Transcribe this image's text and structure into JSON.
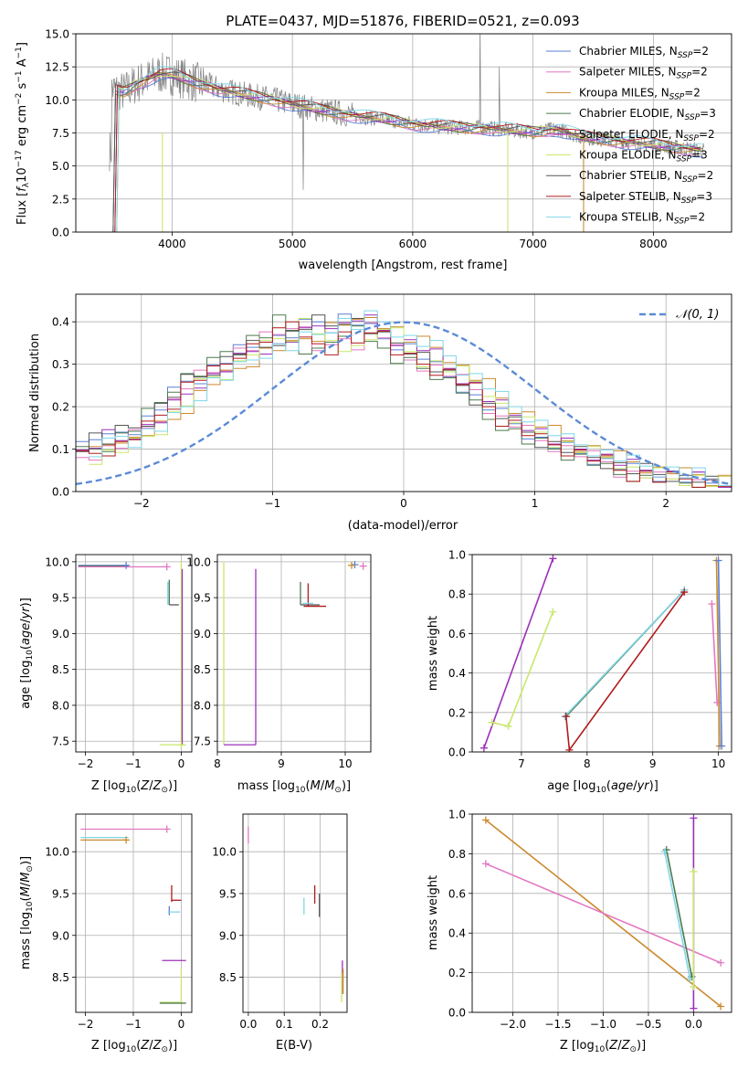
{
  "figure": {
    "title": "PLATE=0437, MJD=51876, FIBERID=0521, z=0.093"
  },
  "colors": {
    "Chabrier MILES": "#5b80d6",
    "Salpeter MILES": "#e377c2",
    "Kroupa MILES": "#cc8a2e",
    "Chabrier ELODIE": "#4f7a4f",
    "Salpeter ELODIE": "#9b30b8",
    "Kroupa ELODIE": "#c8e86a",
    "Chabrier STELIB": "#555555",
    "Salpeter STELIB": "#b01c1c",
    "Kroupa STELIB": "#7fd6e8",
    "data": "#808080",
    "normal": "#5b8bd6",
    "red_model": "#e8643c"
  },
  "chart_data": [
    {
      "type": "line",
      "id": "spectrum",
      "xlabel": "wavelength [Angstrom, rest frame]",
      "ylabel": "Flux [f_λ10^-17 erg cm^-2 s^-1 A^-1]",
      "xlim": [
        3200,
        8650
      ],
      "ylim": [
        0,
        15
      ],
      "xticks": [
        4000,
        5000,
        6000,
        7000,
        8000
      ],
      "yticks": [
        0.0,
        2.5,
        5.0,
        7.5,
        10.0,
        12.5,
        15.0
      ],
      "ytick_labels": [
        "0.0",
        "2.5",
        "5.0",
        "7.5",
        "10.0",
        "12.5",
        "15.0"
      ],
      "legend_position": "upper-right",
      "legend": [
        {
          "name": "Chabrier MILES",
          "sub": "SSP",
          "n": "2"
        },
        {
          "name": "Salpeter MILES",
          "sub": "SSP",
          "n": "2"
        },
        {
          "name": "Kroupa MILES",
          "sub": "SSP",
          "n": "2"
        },
        {
          "name": "Chabrier ELODIE",
          "sub": "SSP",
          "n": "3"
        },
        {
          "name": "Salpeter ELODIE",
          "sub": "SSP",
          "n": "2"
        },
        {
          "name": "Kroupa ELODIE",
          "sub": "SSP",
          "n": "3"
        },
        {
          "name": "Chabrier STELIB",
          "sub": "SSP",
          "n": "2"
        },
        {
          "name": "Salpeter STELIB",
          "sub": "SSP",
          "n": "3"
        },
        {
          "name": "Kroupa STELIB",
          "sub": "SSP",
          "n": "2"
        }
      ],
      "model_continuum": {
        "x": [
          3500,
          3600,
          3700,
          3800,
          3900,
          4000,
          4100,
          4200,
          4300,
          4400,
          4500,
          4600,
          4800,
          5000,
          5200,
          5400,
          5600,
          5800,
          6000,
          6200,
          6400,
          6600,
          6800,
          7000,
          7200,
          7400,
          7600,
          7800,
          8000,
          8200,
          8400
        ],
        "y": [
          10.8,
          10.6,
          11.2,
          11.6,
          12.0,
          11.9,
          11.6,
          11.3,
          11.1,
          10.8,
          10.6,
          10.4,
          10.1,
          9.7,
          9.3,
          9.0,
          8.7,
          8.5,
          8.2,
          8.0,
          7.9,
          7.9,
          7.7,
          7.6,
          7.8,
          7.2,
          7.0,
          6.8,
          6.6,
          6.4,
          6.2
        ]
      }
    },
    {
      "type": "histogram",
      "id": "residuals",
      "xlabel": "(data-model)/error",
      "ylabel": "Normed distribution",
      "xlim": [
        -2.5,
        2.5
      ],
      "ylim": [
        0,
        0.465
      ],
      "xticks": [
        -2,
        -1,
        0,
        1,
        2
      ],
      "xtick_labels": [
        "−2",
        "−1",
        "0",
        "1",
        "2"
      ],
      "yticks": [
        0.0,
        0.1,
        0.2,
        0.3,
        0.4
      ],
      "ytick_labels": [
        "0.0",
        "0.1",
        "0.2",
        "0.3",
        "0.4"
      ],
      "legend": [
        "𝒩(0, 1)"
      ],
      "legend_position": "upper-right",
      "bin_edges_start": -2.5,
      "bin_width": 0.1,
      "series": [
        {
          "name": "Chabrier MILES",
          "values": [
            0.09,
            0.11,
            0.13,
            0.12,
            0.14,
            0.15,
            0.17,
            0.2,
            0.23,
            0.26,
            0.27,
            0.29,
            0.31,
            0.33,
            0.34,
            0.34,
            0.36,
            0.37,
            0.39,
            0.4,
            0.39,
            0.41,
            0.4,
            0.38,
            0.36,
            0.35,
            0.34,
            0.32,
            0.29,
            0.27,
            0.25,
            0.22,
            0.2,
            0.18,
            0.16,
            0.14,
            0.12,
            0.11,
            0.1,
            0.09,
            0.08,
            0.07,
            0.06,
            0.05,
            0.05,
            0.04,
            0.04,
            0.03,
            0.03,
            0.02
          ]
        },
        {
          "name": "Salpeter MILES",
          "values": [
            0.08,
            0.09,
            0.1,
            0.11,
            0.13,
            0.15,
            0.18,
            0.21,
            0.25,
            0.27,
            0.28,
            0.3,
            0.33,
            0.34,
            0.36,
            0.37,
            0.4,
            0.38,
            0.34,
            0.33,
            0.36,
            0.35,
            0.39,
            0.37,
            0.33,
            0.31,
            0.3,
            0.29,
            0.28,
            0.26,
            0.24,
            0.2,
            0.17,
            0.16,
            0.14,
            0.12,
            0.11,
            0.1,
            0.09,
            0.08,
            0.07,
            0.05,
            0.04,
            0.04,
            0.03,
            0.03,
            0.03,
            0.02,
            0.02,
            0.02
          ]
        }
      ],
      "normal_curve": {
        "mean": 0,
        "sigma": 1
      }
    },
    {
      "type": "scatter",
      "id": "age-vs-Z",
      "xlabel": "Z [log10(Z/Z⊙)]",
      "ylabel": "age  [log10(age/yr)]",
      "xlim": [
        -2.2,
        0.22
      ],
      "ylim": [
        7.35,
        10.1
      ],
      "xticks": [
        -2,
        -1,
        0
      ],
      "xtick_labels": [
        "−2",
        "−1",
        "0"
      ],
      "yticks": [
        7.5,
        8.0,
        8.5,
        9.0,
        9.5,
        10.0
      ],
      "ytick_labels": [
        "7.5",
        "8.0",
        "8.5",
        "9.0",
        "9.5",
        "10.0"
      ]
    },
    {
      "type": "scatter",
      "id": "age-vs-mass",
      "xlabel": "mass [log10(M/M⊙)]",
      "ylabel": "",
      "xlim": [
        8.0,
        10.4
      ],
      "ylim": [
        7.35,
        10.1
      ],
      "xticks": [
        8,
        9,
        10
      ],
      "xtick_labels": [
        "8",
        "9",
        "10"
      ],
      "yticks": [
        7.5,
        8.0,
        8.5,
        9.0,
        9.5,
        10.0
      ],
      "ytick_labels": [
        "7.5",
        "8.0",
        "8.5",
        "9.0",
        "9.5",
        "10.0"
      ]
    },
    {
      "type": "line",
      "id": "weight-vs-age",
      "xlabel": "age  [log10(age/yr)]",
      "ylabel": "mass weight",
      "xlim": [
        6.25,
        10.2
      ],
      "ylim": [
        0,
        1
      ],
      "xticks": [
        7,
        8,
        9,
        10
      ],
      "xtick_labels": [
        "7",
        "8",
        "9",
        "10"
      ],
      "yticks": [
        0.0,
        0.2,
        0.4,
        0.6,
        0.8,
        1.0
      ],
      "ytick_labels": [
        "0.0",
        "0.2",
        "0.4",
        "0.6",
        "0.8",
        "1.0"
      ],
      "series": [
        {
          "name": "Salpeter ELODIE",
          "x": [
            6.43,
            7.48
          ],
          "y": [
            0.02,
            0.98
          ]
        },
        {
          "name": "Kroupa ELODIE",
          "x": [
            6.55,
            6.8,
            7.48
          ],
          "y": [
            0.15,
            0.13,
            0.71
          ]
        },
        {
          "name": "Chabrier ELODIE",
          "x": [
            7.68,
            9.48
          ],
          "y": [
            0.18,
            0.82
          ]
        },
        {
          "name": "Kroupa STELIB",
          "x": [
            7.66,
            9.48
          ],
          "y": [
            0.18,
            0.82
          ]
        },
        {
          "name": "Salpeter STELIB",
          "x": [
            7.68,
            7.73,
            9.48
          ],
          "y": [
            0.18,
            0.01,
            0.81
          ]
        },
        {
          "name": "Salpeter MILES",
          "x": [
            9.9,
            9.98
          ],
          "y": [
            0.75,
            0.25
          ]
        },
        {
          "name": "Kroupa MILES",
          "x": [
            9.97,
            10.02
          ],
          "y": [
            0.97,
            0.03
          ]
        },
        {
          "name": "Chabrier MILES",
          "x": [
            10.0,
            10.05
          ],
          "y": [
            0.97,
            0.03
          ]
        }
      ]
    },
    {
      "type": "scatter",
      "id": "mass-vs-Z",
      "xlabel": "Z [log10(Z/Z⊙)]",
      "ylabel": "mass [log10(M/M⊙)]",
      "xlim": [
        -2.2,
        0.22
      ],
      "ylim": [
        8.08,
        10.45
      ],
      "xticks": [
        -2,
        -1,
        0
      ],
      "xtick_labels": [
        "−2",
        "−1",
        "0"
      ],
      "yticks": [
        8.5,
        9.0,
        9.5,
        10.0
      ],
      "ytick_labels": [
        "8.5",
        "9.0",
        "9.5",
        "10.0"
      ]
    },
    {
      "type": "scatter",
      "id": "mass-vs-ebv",
      "xlabel": "E(B-V)",
      "ylabel": "",
      "xlim": [
        -0.015,
        0.275
      ],
      "ylim": [
        8.08,
        10.45
      ],
      "xticks": [
        0.0,
        0.1,
        0.2
      ],
      "xtick_labels": [
        "0.0",
        "0.1",
        "0.2"
      ],
      "yticks": [
        8.5,
        9.0,
        9.5,
        10.0
      ],
      "ytick_labels": [
        "8.5",
        "9.0",
        "9.5",
        "10.0"
      ]
    },
    {
      "type": "line",
      "id": "weight-vs-Z",
      "xlabel": "Z [log10(Z/Z⊙)]",
      "ylabel": "mass weight",
      "xlim": [
        -2.45,
        0.42
      ],
      "ylim": [
        0,
        1
      ],
      "xticks": [
        -2.0,
        -1.5,
        -1.0,
        -0.5,
        0.0
      ],
      "xtick_labels": [
        "−2.0",
        "−1.5",
        "−1.0",
        "−0.5",
        "0.0"
      ],
      "yticks": [
        0.0,
        0.2,
        0.4,
        0.6,
        0.8,
        1.0
      ],
      "ytick_labels": [
        "0.0",
        "0.2",
        "0.4",
        "0.6",
        "0.8",
        "1.0"
      ],
      "series": [
        {
          "name": "Kroupa MILES",
          "x": [
            -2.3,
            0.3
          ],
          "y": [
            0.97,
            0.03
          ]
        },
        {
          "name": "Salpeter MILES",
          "x": [
            -2.3,
            0.3
          ],
          "y": [
            0.75,
            0.25
          ]
        },
        {
          "name": "Chabrier ELODIE",
          "x": [
            -0.3,
            -0.02
          ],
          "y": [
            0.82,
            0.18
          ]
        },
        {
          "name": "Kroupa STELIB",
          "x": [
            -0.32,
            -0.04
          ],
          "y": [
            0.81,
            0.17
          ]
        },
        {
          "name": "Salpeter ELODIE",
          "x": [
            0.0,
            0.0
          ],
          "y": [
            0.98,
            0.02
          ]
        },
        {
          "name": "Kroupa ELODIE",
          "x": [
            0.0,
            0.0
          ],
          "y": [
            0.71,
            0.13
          ]
        }
      ]
    }
  ]
}
